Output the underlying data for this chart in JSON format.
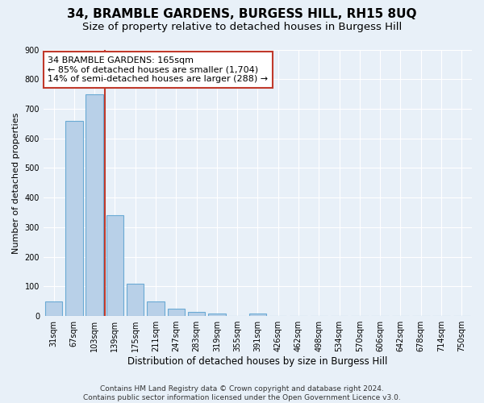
{
  "title": "34, BRAMBLE GARDENS, BURGESS HILL, RH15 8UQ",
  "subtitle": "Size of property relative to detached houses in Burgess Hill",
  "xlabel": "Distribution of detached houses by size in Burgess Hill",
  "ylabel": "Number of detached properties",
  "bar_labels": [
    "31sqm",
    "67sqm",
    "103sqm",
    "139sqm",
    "175sqm",
    "211sqm",
    "247sqm",
    "283sqm",
    "319sqm",
    "355sqm",
    "391sqm",
    "426sqm",
    "462sqm",
    "498sqm",
    "534sqm",
    "570sqm",
    "606sqm",
    "642sqm",
    "678sqm",
    "714sqm",
    "750sqm"
  ],
  "bar_values": [
    50,
    660,
    748,
    340,
    110,
    50,
    24,
    14,
    10,
    0,
    8,
    0,
    0,
    0,
    0,
    0,
    0,
    0,
    0,
    0,
    0
  ],
  "bar_color": "#b8d0e8",
  "bar_edgecolor": "#6aaad4",
  "ylim": [
    0,
    900
  ],
  "yticks": [
    0,
    100,
    200,
    300,
    400,
    500,
    600,
    700,
    800,
    900
  ],
  "vline_x_index": 3,
  "vline_color": "#c0392b",
  "annotation_text_line1": "34 BRAMBLE GARDENS: 165sqm",
  "annotation_text_line2": "← 85% of detached houses are smaller (1,704)",
  "annotation_text_line3": "14% of semi-detached houses are larger (288) →",
  "footer_line1": "Contains HM Land Registry data © Crown copyright and database right 2024.",
  "footer_line2": "Contains public sector information licensed under the Open Government Licence v3.0.",
  "bg_color": "#e8f0f8",
  "plot_bg_color": "#e8f0f8",
  "grid_color": "#ffffff",
  "title_fontsize": 11,
  "subtitle_fontsize": 9.5,
  "xlabel_fontsize": 8.5,
  "ylabel_fontsize": 8,
  "tick_fontsize": 7,
  "annotation_fontsize": 8,
  "footer_fontsize": 6.5
}
